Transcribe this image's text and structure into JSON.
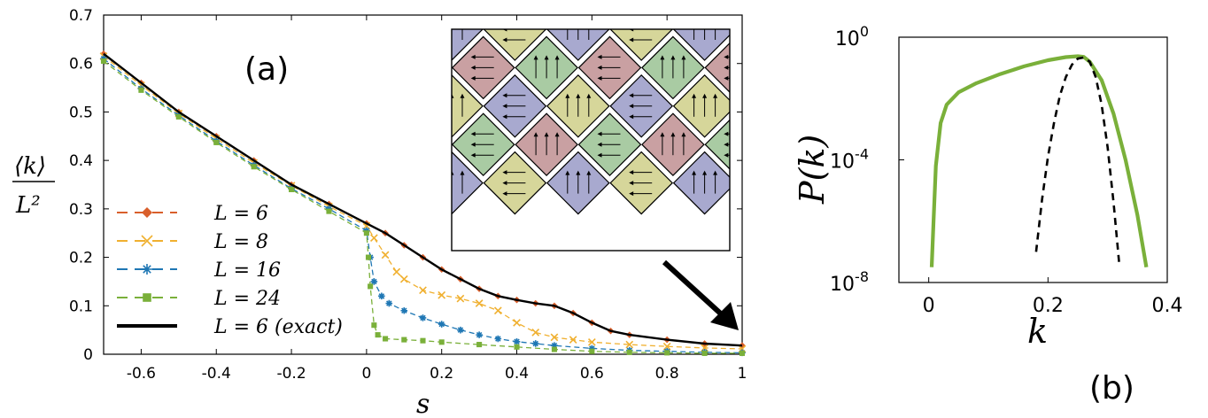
{
  "chart_data": [
    {
      "type": "line",
      "panel_label": "(a)",
      "xlabel": "s",
      "ylabel_numerator": "⟨k⟩",
      "ylabel_denominator": "L²",
      "xlim": [
        -0.7,
        1.0
      ],
      "ylim": [
        0,
        0.7
      ],
      "xticks": [
        "-0.6",
        "-0.4",
        "-0.2",
        "0",
        "0.2",
        "0.4",
        "0.6",
        "0.8",
        "1"
      ],
      "xtick_values": [
        -0.6,
        -0.4,
        -0.2,
        0,
        0.2,
        0.4,
        0.6,
        0.8,
        1.0
      ],
      "yticks": [
        "0",
        "0.1",
        "0.2",
        "0.3",
        "0.4",
        "0.5",
        "0.6",
        "0.7"
      ],
      "ytick_values": [
        0,
        0.1,
        0.2,
        0.3,
        0.4,
        0.5,
        0.6,
        0.7
      ],
      "legend_position": "bottom-left",
      "series": [
        {
          "name": "L = 6",
          "color": "#d95f2b",
          "marker": "diamond",
          "dashed": true,
          "x": [
            -0.7,
            -0.6,
            -0.5,
            -0.4,
            -0.3,
            -0.2,
            -0.1,
            0.0,
            0.05,
            0.1,
            0.15,
            0.2,
            0.25,
            0.3,
            0.35,
            0.4,
            0.45,
            0.5,
            0.55,
            0.6,
            0.65,
            0.7,
            0.8,
            0.9,
            1.0
          ],
          "y": [
            0.62,
            0.56,
            0.5,
            0.45,
            0.4,
            0.35,
            0.31,
            0.27,
            0.25,
            0.225,
            0.2,
            0.175,
            0.155,
            0.135,
            0.12,
            0.112,
            0.105,
            0.1,
            0.085,
            0.065,
            0.048,
            0.04,
            0.03,
            0.022,
            0.018
          ]
        },
        {
          "name": "L = 8",
          "color": "#f0b030",
          "marker": "x",
          "dashed": true,
          "x": [
            -0.7,
            -0.6,
            -0.5,
            -0.4,
            -0.3,
            -0.2,
            -0.1,
            0.0,
            0.02,
            0.05,
            0.08,
            0.1,
            0.15,
            0.2,
            0.25,
            0.3,
            0.35,
            0.4,
            0.45,
            0.5,
            0.55,
            0.6,
            0.7,
            0.8,
            0.9,
            1.0
          ],
          "y": [
            0.615,
            0.555,
            0.497,
            0.445,
            0.395,
            0.348,
            0.305,
            0.265,
            0.24,
            0.205,
            0.17,
            0.155,
            0.132,
            0.122,
            0.115,
            0.105,
            0.09,
            0.065,
            0.045,
            0.035,
            0.03,
            0.025,
            0.02,
            0.016,
            0.013,
            0.011
          ]
        },
        {
          "name": "L = 16",
          "color": "#1f77b4",
          "marker": "star",
          "dashed": true,
          "x": [
            -0.7,
            -0.6,
            -0.5,
            -0.4,
            -0.3,
            -0.2,
            -0.1,
            0.0,
            0.01,
            0.02,
            0.04,
            0.06,
            0.1,
            0.15,
            0.2,
            0.25,
            0.3,
            0.35,
            0.4,
            0.45,
            0.5,
            0.6,
            0.7,
            0.8,
            0.9,
            1.0
          ],
          "y": [
            0.61,
            0.548,
            0.493,
            0.44,
            0.39,
            0.342,
            0.3,
            0.255,
            0.2,
            0.15,
            0.12,
            0.105,
            0.09,
            0.075,
            0.062,
            0.05,
            0.04,
            0.032,
            0.026,
            0.022,
            0.018,
            0.012,
            0.008,
            0.006,
            0.004,
            0.003
          ]
        },
        {
          "name": "L = 24",
          "color": "#7ab03a",
          "marker": "square",
          "dashed": true,
          "x": [
            -0.7,
            -0.6,
            -0.5,
            -0.4,
            -0.3,
            -0.2,
            -0.1,
            0.0,
            0.005,
            0.01,
            0.02,
            0.03,
            0.05,
            0.1,
            0.15,
            0.2,
            0.3,
            0.4,
            0.5,
            0.6,
            0.7,
            0.8,
            0.9,
            1.0
          ],
          "y": [
            0.605,
            0.545,
            0.49,
            0.437,
            0.387,
            0.34,
            0.295,
            0.25,
            0.2,
            0.14,
            0.06,
            0.04,
            0.032,
            0.03,
            0.028,
            0.025,
            0.02,
            0.015,
            0.01,
            0.006,
            0.004,
            0.003,
            0.002,
            0.002
          ]
        },
        {
          "name": "L = 6 (exact)",
          "color": "#000000",
          "marker": "none",
          "dashed": false,
          "x": [
            -0.7,
            -0.6,
            -0.5,
            -0.4,
            -0.3,
            -0.2,
            -0.1,
            0.0,
            0.05,
            0.1,
            0.15,
            0.2,
            0.25,
            0.3,
            0.35,
            0.4,
            0.45,
            0.5,
            0.55,
            0.6,
            0.65,
            0.7,
            0.8,
            0.9,
            1.0
          ],
          "y": [
            0.62,
            0.56,
            0.5,
            0.45,
            0.4,
            0.35,
            0.31,
            0.27,
            0.25,
            0.225,
            0.2,
            0.175,
            0.155,
            0.135,
            0.12,
            0.112,
            0.105,
            0.1,
            0.085,
            0.065,
            0.048,
            0.04,
            0.03,
            0.022,
            0.018
          ]
        }
      ]
    },
    {
      "type": "line",
      "panel_label": "(b)",
      "xlabel": "k",
      "ylabel": "P(k)",
      "xlim": [
        -0.05,
        0.4
      ],
      "y_scale": "log",
      "ylim_exponents": [
        -8,
        0
      ],
      "xticks": [
        "0",
        "0.2",
        "0.4"
      ],
      "xtick_values": [
        0,
        0.2,
        0.4
      ],
      "ytick_base": "10",
      "ytick_exponents": [
        "0",
        "-4",
        "-8"
      ],
      "ytick_values": [
        0,
        -4,
        -8
      ],
      "series": [
        {
          "color": "#7ab03a",
          "dashed": false,
          "x": [
            0.005,
            0.008,
            0.012,
            0.02,
            0.03,
            0.05,
            0.08,
            0.12,
            0.16,
            0.2,
            0.23,
            0.25,
            0.26,
            0.27,
            0.29,
            0.31,
            0.33,
            0.35,
            0.365
          ],
          "log10_y": [
            -7.5,
            -6.0,
            -4.2,
            -2.8,
            -2.2,
            -1.8,
            -1.5,
            -1.2,
            -0.95,
            -0.75,
            -0.65,
            -0.62,
            -0.64,
            -0.8,
            -1.4,
            -2.5,
            -4.0,
            -5.8,
            -7.5
          ]
        },
        {
          "color": "#000000",
          "dashed": true,
          "x": [
            0.18,
            0.19,
            0.2,
            0.21,
            0.22,
            0.23,
            0.24,
            0.25,
            0.26,
            0.27,
            0.28,
            0.29,
            0.3,
            0.31,
            0.32
          ],
          "log10_y": [
            -7.0,
            -5.3,
            -3.9,
            -2.8,
            -1.9,
            -1.3,
            -0.9,
            -0.7,
            -0.66,
            -0.8,
            -1.3,
            -2.2,
            -3.6,
            -5.4,
            -7.5
          ]
        }
      ]
    }
  ]
}
